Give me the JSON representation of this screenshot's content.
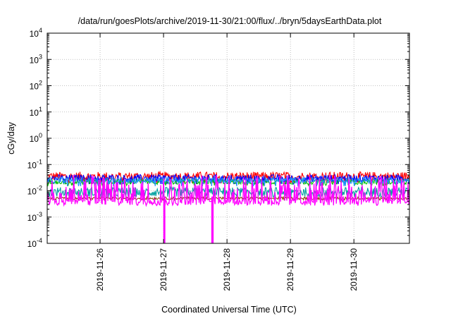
{
  "chart_data": {
    "type": "line",
    "title": "/data/run/goesPlots/archive/2019-11-30/21:00/flux/../bryn/5daysEarthData.plot",
    "xlabel": "Coordinated Universal Time (UTC)",
    "ylabel": "cGy/day",
    "yscale": "log",
    "ylim": [
      0.0001,
      10000
    ],
    "xlim": [
      "2019-11-25T04:00",
      "2019-11-30T21:00"
    ],
    "grid": true,
    "legend": "none",
    "y_ticks": [
      {
        "mantissa": "10",
        "exponent": "-4",
        "value": 0.0001
      },
      {
        "mantissa": "10",
        "exponent": "-3",
        "value": 0.001
      },
      {
        "mantissa": "10",
        "exponent": "-2",
        "value": 0.01
      },
      {
        "mantissa": "10",
        "exponent": "-1",
        "value": 0.1
      },
      {
        "mantissa": "10",
        "exponent": "0",
        "value": 1
      },
      {
        "mantissa": "10",
        "exponent": "1",
        "value": 10
      },
      {
        "mantissa": "10",
        "exponent": "2",
        "value": 100
      },
      {
        "mantissa": "10",
        "exponent": "3",
        "value": 1000
      },
      {
        "mantissa": "10",
        "exponent": "4",
        "value": 10000
      }
    ],
    "x_ticks": [
      "2019-11-26",
      "2019-11-27",
      "2019-11-28",
      "2019-11-29",
      "2019-11-30"
    ],
    "series": [
      {
        "color": "#ff0000",
        "level": 0.035,
        "spread": 0.18,
        "floor": 0.02
      },
      {
        "color": "#0000ff",
        "level": 0.03,
        "spread": 0.14,
        "floor": 0.018
      },
      {
        "color": "#00a0a0",
        "level": 0.009,
        "spread": 0.18,
        "floor": 0.006
      },
      {
        "color": "#00c000",
        "level": 0.022,
        "spread": 0.1,
        "floor": 0.016
      },
      {
        "color": "#1e90ff",
        "level": 0.025,
        "spread": 0.12,
        "floor": 0.015
      },
      {
        "color": "#8b4513",
        "level": 0.0052,
        "spread": 0.05,
        "floor": 0.0045
      },
      {
        "color": "#ff00ff",
        "level": 0.006,
        "spread": 0.35,
        "floor": 0.003
      }
    ],
    "dropouts": [
      {
        "x": "2019-11-27T00:10",
        "value": 0.0001
      },
      {
        "x": "2019-11-27T00:25",
        "value": 0.0001
      },
      {
        "x": "2019-11-27T18:20",
        "value": 0.0001
      },
      {
        "x": "2019-11-27T18:40",
        "value": 0.0001
      }
    ]
  }
}
